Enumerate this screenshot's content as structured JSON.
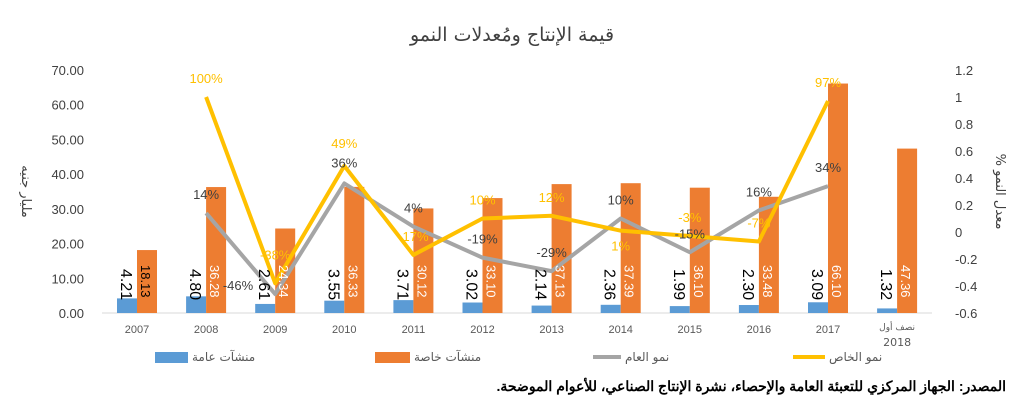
{
  "chart_data": {
    "type": "bar",
    "title": "قيمة الإنتاج ومُعدلات النمو",
    "ylabel_left": "مليار جنيه",
    "ylabel_right": "% معدل النمو",
    "ylim_left": [
      0,
      70
    ],
    "yticks_left": [
      "0.00",
      "10.00",
      "20.00",
      "30.00",
      "40.00",
      "50.00",
      "60.00",
      "70.00"
    ],
    "ylim_right": [
      -0.6,
      1.2
    ],
    "yticks_right": [
      "-0.6",
      "-0.4",
      "-0.2",
      "0",
      "0.2",
      "0.4",
      "0.6",
      "0.8",
      "1",
      "1.2"
    ],
    "categories": [
      "2007",
      "2008",
      "2009",
      "2010",
      "2011",
      "2012",
      "2013",
      "2014",
      "2015",
      "2016",
      "2017",
      "نصف أول 2018"
    ],
    "series": [
      {
        "name": "منشآت عامة",
        "type": "bar",
        "color": "#5b9bd5",
        "values": [
          4.21,
          4.8,
          2.61,
          3.55,
          3.71,
          3.02,
          2.14,
          2.36,
          1.99,
          2.3,
          3.09,
          1.32
        ],
        "labels": [
          "4.21",
          "4.80",
          "2.61",
          "3.55",
          "3.71",
          "3.02",
          "2.14",
          "2.36",
          "1.99",
          "2.30",
          "3.09",
          "1.32"
        ]
      },
      {
        "name": "منشآت خاصة",
        "type": "bar",
        "color": "#ed7d31",
        "values": [
          18.13,
          36.28,
          24.34,
          36.33,
          30.12,
          33.1,
          37.13,
          37.39,
          36.1,
          33.48,
          66.1,
          47.36
        ],
        "labels": [
          "18.13",
          "36.28",
          "24.34",
          "36.33",
          "30.12",
          "33.10",
          "37.13",
          "37.39",
          "36.10",
          "33.48",
          "66.10",
          "47.36"
        ]
      },
      {
        "name": "نمو العام",
        "type": "line",
        "axis": "right",
        "color": "#a5a5a5",
        "values": [
          null,
          0.14,
          -0.46,
          0.36,
          0.04,
          -0.19,
          -0.29,
          0.1,
          -0.15,
          0.16,
          0.34,
          null
        ],
        "labels": [
          null,
          "14%",
          "-46%",
          "36%",
          "4%",
          "-19%",
          "-29%",
          "10%",
          "-15%",
          "16%",
          "34%",
          null
        ]
      },
      {
        "name": "نمو الخاص",
        "type": "line",
        "axis": "right",
        "color": "#ffc000",
        "values": [
          null,
          1.0,
          -0.38,
          0.49,
          -0.17,
          0.1,
          0.12,
          0.01,
          -0.03,
          -0.07,
          0.97,
          null
        ],
        "labels": [
          null,
          "100%",
          "-38%",
          "49%",
          "-17%",
          "10%",
          "12%",
          "1%",
          "-3%",
          "-7%",
          "97%",
          null
        ]
      }
    ],
    "legend": "bottom"
  },
  "source": "المصدر: الجهاز المركزي للتعبئة العامة والإحصاء، نشرة الإنتاج الصناعي، للأعوام الموضحة."
}
